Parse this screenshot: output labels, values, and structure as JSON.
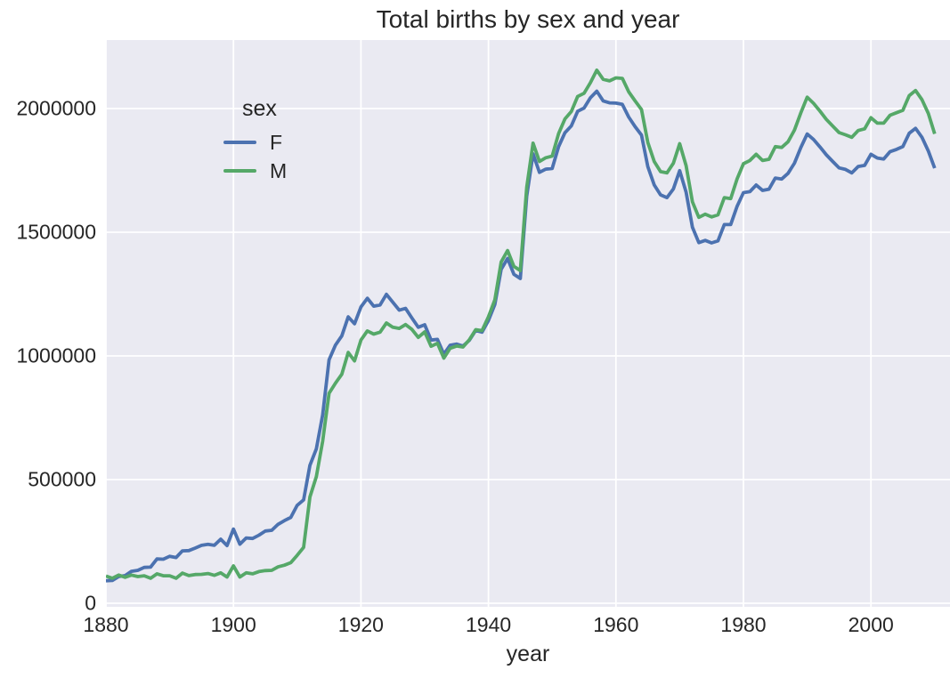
{
  "chart_data": {
    "type": "line",
    "title": "Total births by sex and year",
    "xlabel": "year",
    "ylabel": "",
    "legend": {
      "title": "sex",
      "position": "upper left",
      "entries": [
        {
          "label": "F",
          "color": "#4c72b0"
        },
        {
          "label": "M",
          "color": "#55a868"
        }
      ]
    },
    "axes": {
      "xlim": [
        1880,
        2012.4
      ],
      "ylim": [
        -14400,
        2277000
      ],
      "xticks": [
        1880,
        1900,
        1920,
        1940,
        1960,
        1980,
        2000
      ],
      "yticks": [
        0,
        500000,
        1000000,
        1500000,
        2000000
      ],
      "grid": true,
      "plot_background": "#eaeaf2",
      "grid_color": "#ffffff",
      "text_color": "#262626"
    },
    "x": [
      1880,
      1881,
      1882,
      1883,
      1884,
      1885,
      1886,
      1887,
      1888,
      1889,
      1890,
      1891,
      1892,
      1893,
      1894,
      1895,
      1896,
      1897,
      1898,
      1899,
      1900,
      1901,
      1902,
      1903,
      1904,
      1905,
      1906,
      1907,
      1908,
      1909,
      1910,
      1911,
      1912,
      1913,
      1914,
      1915,
      1916,
      1917,
      1918,
      1919,
      1920,
      1921,
      1922,
      1923,
      1924,
      1925,
      1926,
      1927,
      1928,
      1929,
      1930,
      1931,
      1932,
      1933,
      1934,
      1935,
      1936,
      1937,
      1938,
      1939,
      1940,
      1941,
      1942,
      1943,
      1944,
      1945,
      1946,
      1947,
      1948,
      1949,
      1950,
      1951,
      1952,
      1953,
      1954,
      1955,
      1956,
      1957,
      1958,
      1959,
      1960,
      1961,
      1962,
      1963,
      1964,
      1965,
      1966,
      1967,
      1968,
      1969,
      1970,
      1971,
      1972,
      1973,
      1974,
      1975,
      1976,
      1977,
      1978,
      1979,
      1980,
      1981,
      1982,
      1983,
      1984,
      1985,
      1986,
      1987,
      1988,
      1989,
      1990,
      1991,
      1992,
      1993,
      1994,
      1995,
      1996,
      1997,
      1998,
      1999,
      2000,
      2001,
      2002,
      2003,
      2004,
      2005,
      2006,
      2007,
      2008,
      2009,
      2010
    ],
    "series": [
      {
        "name": "F",
        "color": "#4c72b0",
        "values": [
          91000,
          92000,
          108000,
          112000,
          129000,
          133000,
          145000,
          146000,
          179000,
          178000,
          190000,
          185000,
          212000,
          213000,
          223000,
          234000,
          238000,
          234000,
          259000,
          233000,
          300000,
          239000,
          264000,
          262000,
          275000,
          292000,
          295000,
          319000,
          334000,
          347000,
          396000,
          418000,
          558000,
          624000,
          761000,
          984000,
          1044000,
          1081000,
          1158000,
          1130000,
          1198000,
          1233000,
          1201000,
          1206000,
          1249000,
          1217000,
          1185000,
          1192000,
          1153000,
          1116000,
          1126000,
          1064000,
          1067000,
          1007000,
          1043000,
          1048000,
          1040000,
          1063000,
          1103000,
          1096000,
          1143000,
          1208000,
          1350000,
          1394000,
          1330000,
          1313000,
          1646000,
          1817000,
          1742000,
          1755000,
          1758000,
          1846000,
          1902000,
          1930000,
          1989000,
          2002000,
          2044000,
          2070000,
          2031000,
          2023000,
          2022000,
          2017000,
          1966000,
          1927000,
          1893000,
          1765000,
          1691000,
          1651000,
          1640000,
          1675000,
          1749000,
          1662000,
          1520000,
          1458000,
          1467000,
          1457000,
          1465000,
          1531000,
          1531000,
          1605000,
          1660000,
          1664000,
          1691000,
          1669000,
          1674000,
          1719000,
          1715000,
          1738000,
          1779000,
          1843000,
          1897000,
          1875000,
          1845000,
          1813000,
          1786000,
          1760000,
          1754000,
          1740000,
          1766000,
          1770000,
          1815000,
          1800000,
          1796000,
          1826000,
          1835000,
          1846000,
          1900000,
          1920000,
          1884000,
          1828000,
          1759000
        ]
      },
      {
        "name": "M",
        "color": "#55a868",
        "values": [
          110000,
          101000,
          114000,
          105000,
          114000,
          108000,
          111000,
          101000,
          119000,
          111000,
          111000,
          101000,
          122000,
          112000,
          116000,
          117000,
          120000,
          113000,
          123000,
          106000,
          151000,
          106000,
          123000,
          119000,
          128000,
          132000,
          133000,
          147000,
          154000,
          164000,
          194000,
          226000,
          430000,
          512000,
          655000,
          849000,
          890000,
          926000,
          1014000,
          980000,
          1064000,
          1101000,
          1088000,
          1096000,
          1133000,
          1116000,
          1111000,
          1127000,
          1107000,
          1075000,
          1097000,
          1039000,
          1051000,
          991000,
          1031000,
          1040000,
          1036000,
          1065000,
          1106000,
          1102000,
          1158000,
          1227000,
          1380000,
          1426000,
          1362000,
          1345000,
          1682000,
          1860000,
          1786000,
          1801000,
          1808000,
          1899000,
          1958000,
          1988000,
          2049000,
          2062000,
          2105000,
          2155000,
          2118000,
          2112000,
          2124000,
          2122000,
          2068000,
          2031000,
          1996000,
          1863000,
          1786000,
          1745000,
          1740000,
          1779000,
          1858000,
          1769000,
          1623000,
          1560000,
          1573000,
          1562000,
          1570000,
          1640000,
          1636000,
          1716000,
          1777000,
          1790000,
          1815000,
          1790000,
          1795000,
          1846000,
          1843000,
          1866000,
          1913000,
          1983000,
          2046000,
          2021000,
          1990000,
          1956000,
          1929000,
          1903000,
          1894000,
          1884000,
          1911000,
          1918000,
          1963000,
          1941000,
          1941000,
          1973000,
          1983000,
          1993000,
          2052000,
          2073000,
          2036000,
          1980000,
          1898000
        ]
      }
    ]
  }
}
